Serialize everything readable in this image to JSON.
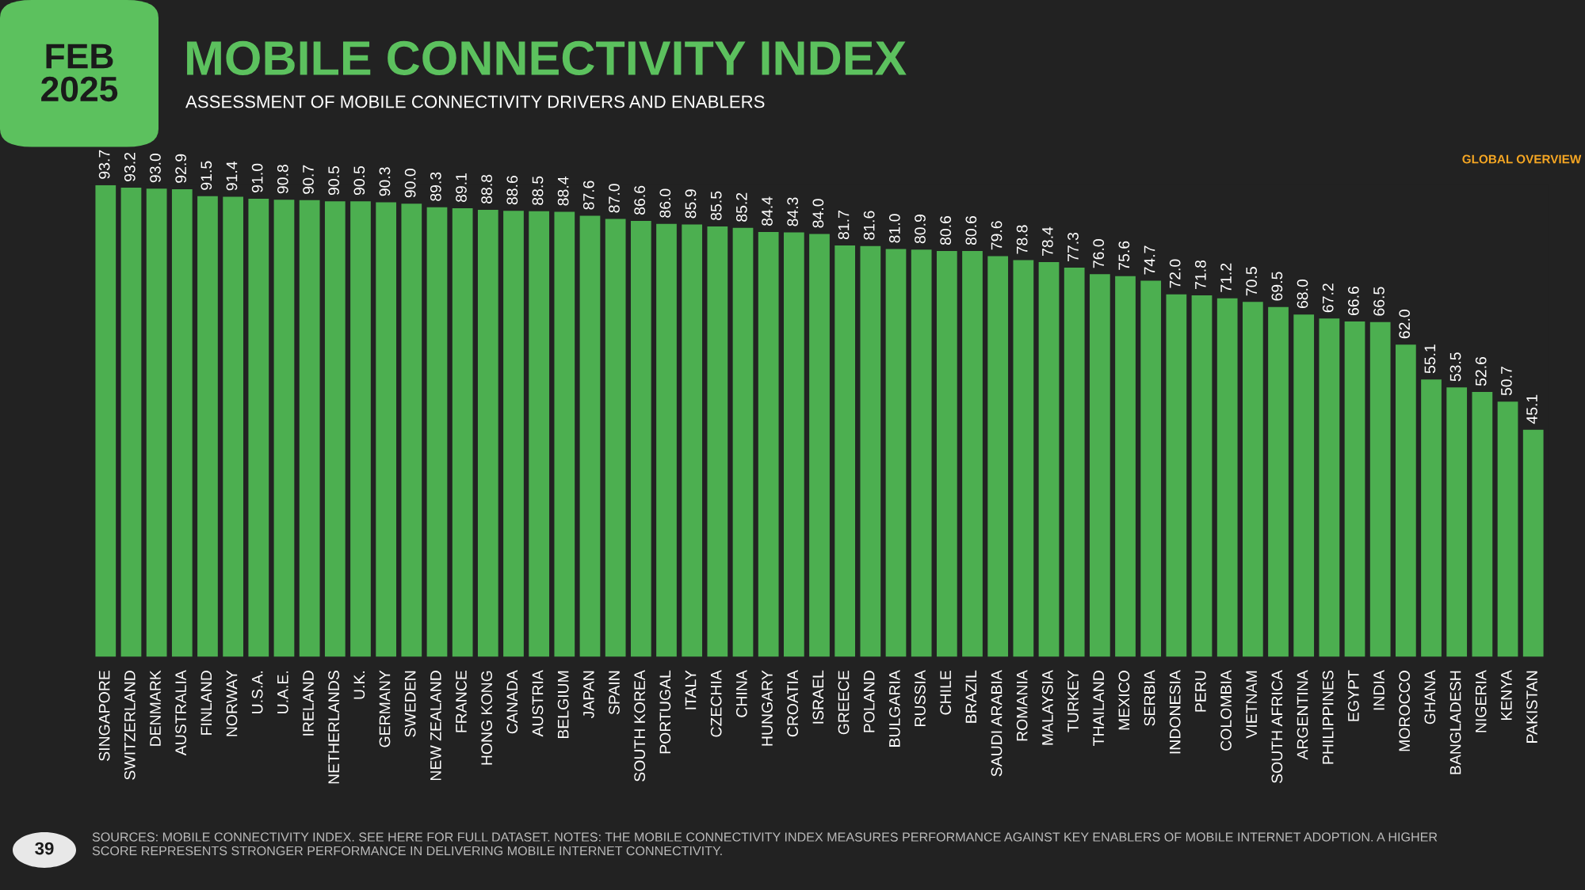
{
  "chart_data": {
    "type": "bar",
    "title": "MOBILE CONNECTIVITY INDEX",
    "subtitle": "ASSESSMENT OF MOBILE CONNECTIVITY DRIVERS AND ENABLERS",
    "categories": [
      "SINGAPORE",
      "SWITZERLAND",
      "DENMARK",
      "AUSTRALIA",
      "FINLAND",
      "NORWAY",
      "U.S.A.",
      "U.A.E.",
      "IRELAND",
      "NETHERLANDS",
      "U.K.",
      "GERMANY",
      "SWEDEN",
      "NEW ZEALAND",
      "FRANCE",
      "HONG KONG",
      "CANADA",
      "AUSTRIA",
      "BELGIUM",
      "JAPAN",
      "SPAIN",
      "SOUTH KOREA",
      "PORTUGAL",
      "ITALY",
      "CZECHIA",
      "CHINA",
      "HUNGARY",
      "CROATIA",
      "ISRAEL",
      "GREECE",
      "POLAND",
      "BULGARIA",
      "RUSSIA",
      "CHILE",
      "BRAZIL",
      "SAUDI ARABIA",
      "ROMANIA",
      "MALAYSIA",
      "TURKEY",
      "THAILAND",
      "MEXICO",
      "SERBIA",
      "INDONESIA",
      "PERU",
      "COLOMBIA",
      "VIETNAM",
      "SOUTH AFRICA",
      "ARGENTINA",
      "PHILIPPINES",
      "EGYPT",
      "INDIA",
      "MOROCCO",
      "GHANA",
      "BANGLADESH",
      "NIGERIA",
      "KENYA",
      "PAKISTAN"
    ],
    "values": [
      93.7,
      93.2,
      93.0,
      92.9,
      91.5,
      91.4,
      91.0,
      90.8,
      90.7,
      90.5,
      90.5,
      90.3,
      90.0,
      89.3,
      89.1,
      88.8,
      88.6,
      88.5,
      88.4,
      87.6,
      87.0,
      86.6,
      86.0,
      85.9,
      85.5,
      85.2,
      84.4,
      84.3,
      84.0,
      81.7,
      81.6,
      81.0,
      80.9,
      80.6,
      80.6,
      79.6,
      78.8,
      78.4,
      77.3,
      76.0,
      75.6,
      74.7,
      72.0,
      71.8,
      71.2,
      70.5,
      69.5,
      68.0,
      67.2,
      66.6,
      66.5,
      62.0,
      55.1,
      53.5,
      52.6,
      50.7,
      45.1
    ],
    "value_labels": [
      "93.7",
      "93.2",
      "93.0",
      "92.9",
      "91.5",
      "91.4",
      "91.0",
      "90.8",
      "90.7",
      "90.5",
      "90.5",
      "90.3",
      "90.0",
      "89.3",
      "89.1",
      "88.8",
      "88.6",
      "88.5",
      "88.4",
      "87.6",
      "87.0",
      "86.6",
      "86.0",
      "85.9",
      "85.5",
      "85.2",
      "84.4",
      "84.3",
      "84.0",
      "81.7",
      "81.6",
      "81.0",
      "80.9",
      "80.6",
      "80.6",
      "79.6",
      "78.8",
      "78.4",
      "77.3",
      "76.0",
      "75.6",
      "74.7",
      "72.0",
      "71.8",
      "71.2",
      "70.5",
      "69.5",
      "68.0",
      "67.2",
      "66.6",
      "66.5",
      "62.0",
      "55.1",
      "53.5",
      "52.6",
      "50.7",
      "45.1"
    ],
    "color": "#4caf50",
    "annotations": [
      "FEB\n2025",
      "GLOBAL OVERVIEW",
      "39",
      "SOURCES: MOBILE CONNECTIVITY INDEX. SEE HERE FOR FULL DATASET. NOTES: THE MOBILE CONNECTIVITY INDEX MEASURES PERFORMANCE AGAINST KEY ENABLERS OF MOBILE INTERNET ADOPTION. A HIGHER SCORE REPRESENTS STRONGER PERFORMANCE IN DELIVERING MOBILE INTERNET CONNECTIVITY."
    ],
    "grid": false,
    "legend": false
  }
}
